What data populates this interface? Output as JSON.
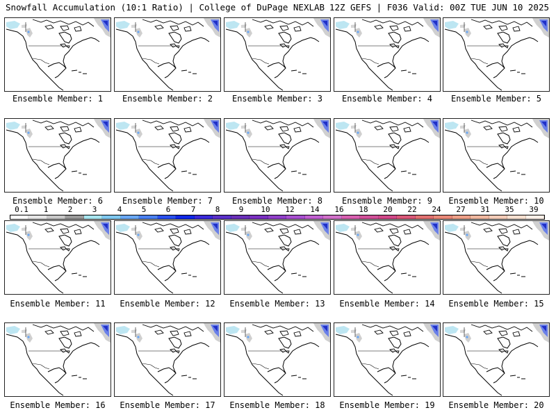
{
  "header": {
    "left": "Snowfall Accumulation (10:1 Ratio) | College of DuPage NEXLAB",
    "right": "12Z GEFS | F036 Valid: 00Z TUE JUN 10 2025"
  },
  "members": [
    "Ensemble Member: 1",
    "Ensemble Member: 2",
    "Ensemble Member: 3",
    "Ensemble Member: 4",
    "Ensemble Member: 5",
    "Ensemble Member: 6",
    "Ensemble Member: 7",
    "Ensemble Member: 8",
    "Ensemble Member: 9",
    "Ensemble Member: 10",
    "Ensemble Member: 11",
    "Ensemble Member: 12",
    "Ensemble Member: 13",
    "Ensemble Member: 14",
    "Ensemble Member: 15",
    "Ensemble Member: 16",
    "Ensemble Member: 17",
    "Ensemble Member: 18",
    "Ensemble Member: 19",
    "Ensemble Member: 20"
  ],
  "colorbar": {
    "ticks": [
      "0.1",
      "1",
      "2",
      "3",
      "4",
      "5",
      "6",
      "7",
      "8",
      "9",
      "10",
      "12",
      "14",
      "16",
      "18",
      "20",
      "22",
      "24",
      "27",
      "31",
      "35",
      "39"
    ],
    "colors": [
      "#ffffff",
      "#e6e6e6",
      "#c8c8c8",
      "#9a9a9a",
      "#a8e6f0",
      "#7fc8f0",
      "#6aa8f5",
      "#4a80f0",
      "#2a50ee",
      "#1028e6",
      "#3a2ad8",
      "#5a30c8",
      "#6a30b8",
      "#7a30c0",
      "#9040c8",
      "#a850d0",
      "#c060d0",
      "#d070c8",
      "#d860b0",
      "#d05098",
      "#d04888",
      "#d85878",
      "#e07070",
      "#e88878",
      "#eea088",
      "#f0b8a0",
      "#f4ccb8",
      "#f8e0d0",
      "#fcf0e8"
    ]
  }
}
